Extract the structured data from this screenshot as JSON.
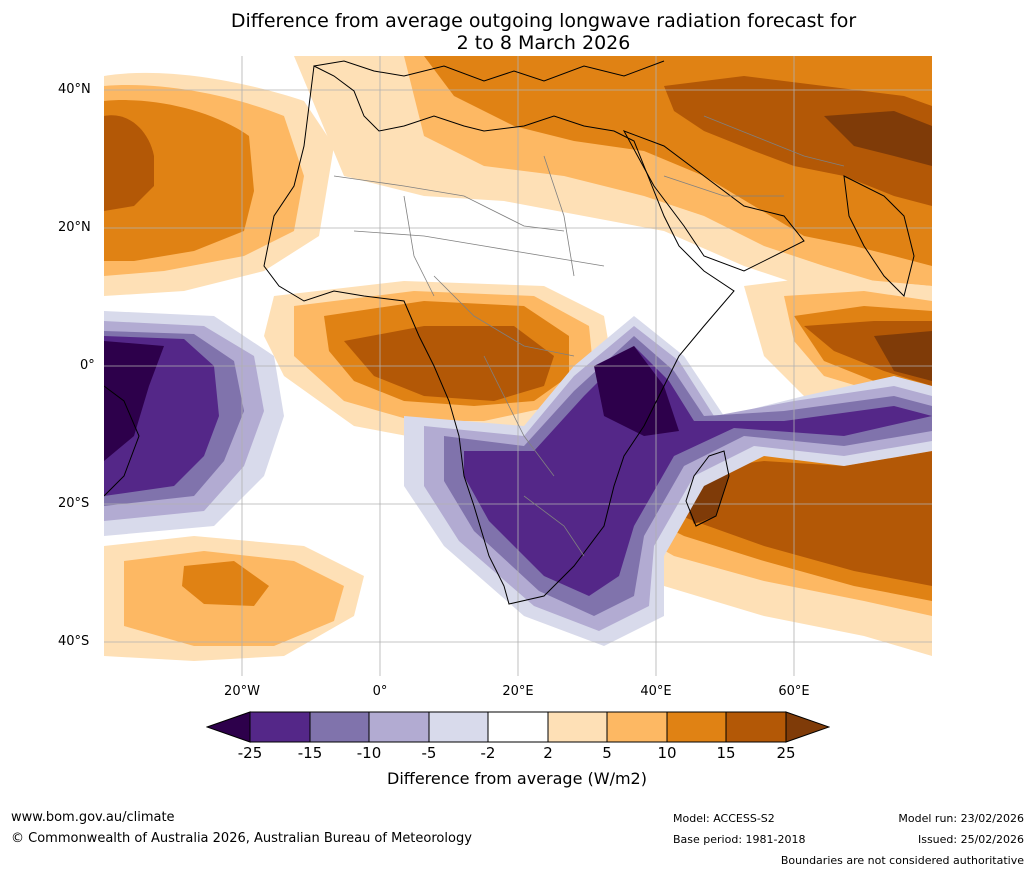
{
  "title": {
    "line1": "Difference from average outgoing longwave radiation forecast for",
    "line2": "2 to 8 March 2026"
  },
  "map": {
    "lat_labels": [
      "40°N",
      "20°N",
      "0°",
      "20°S",
      "40°S"
    ],
    "lon_labels": [
      "20°W",
      "0°",
      "20°E",
      "40°E",
      "60°E"
    ],
    "palette": {
      "lt_m25": "#2d004b",
      "m25_m15": "#542788",
      "m15_m10": "#8073ac",
      "m10_m5": "#b2abd2",
      "m5_m2": "#d8daeb",
      "m2_p2": "#ffffff",
      "p2_p5": "#fee0b6",
      "p5_p10": "#fdb863",
      "p10_p15": "#e08214",
      "p15_p25": "#b35806",
      "gt_p25": "#7f3b08",
      "ocean": "#ffffff",
      "coast": "#000000",
      "border": "#808080",
      "grid": "#b0b0b0"
    }
  },
  "colorbar": {
    "ticks": [
      "-25",
      "-15",
      "-10",
      "-5",
      "-2",
      "2",
      "5",
      "10",
      "15",
      "25"
    ],
    "label": "Difference from average (W/m2)"
  },
  "footer": {
    "website": "www.bom.gov.au/climate",
    "copyright": "© Commonwealth of Australia 2026, Australian Bureau of Meteorology",
    "model": "Model: ACCESS-S2",
    "base_period": "Base period: 1981-2018",
    "model_run": "Model run: 23/02/2026",
    "issued": "Issued: 25/02/2026",
    "disclaimer": "Boundaries are not considered authoritative"
  }
}
